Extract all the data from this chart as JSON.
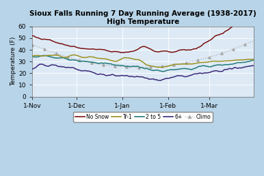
{
  "title": "Sioux Falls Running 7 Day Running Average (1938-2017)\nHigh Temperature",
  "ylabel": "Temperature (F)",
  "background_color": "#b8d4e8",
  "plot_bg_color": "#ddeaf5",
  "ylim": [
    0,
    60
  ],
  "yticks": [
    0,
    10,
    20,
    30,
    40,
    50,
    60
  ],
  "x_tick_labels": [
    "1-Nov",
    "1-Dec",
    "1-Jan",
    "1-Feb",
    "1-Mar"
  ],
  "xtick_pos": [
    0,
    30,
    61,
    92,
    120
  ],
  "n_days": 151,
  "series_colors": {
    "no_snow": "#7a1010",
    "tr1": "#9a9020",
    "two_to_five": "#207878",
    "six_plus": "#3a2878",
    "climo": "#aaaaaa"
  },
  "legend_labels": [
    "No Snow",
    "Tr-1",
    "2 to 5",
    "6+",
    "Climo"
  ]
}
